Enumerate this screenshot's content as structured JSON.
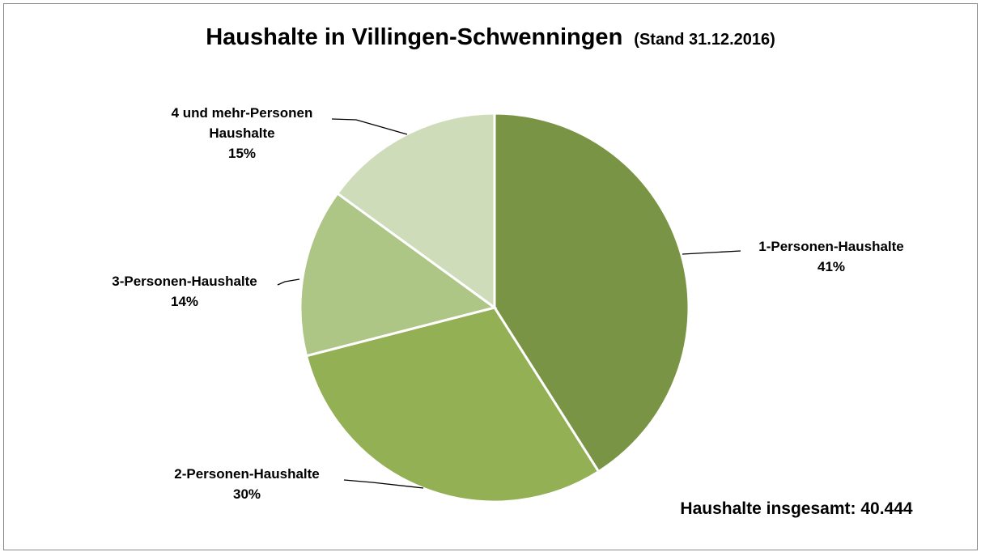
{
  "chart_data": {
    "type": "pie",
    "title": "Haushalte in Villingen-Schwenningen",
    "subtitle": "(Stand 31.12.2016)",
    "annotation": "Haushalte insgesamt: 40.444",
    "categories": [
      "1-Personen-Haushalte",
      "2-Personen-Haushalte",
      "3-Personen-Haushalte",
      "4 und mehr-Personen Haushalte"
    ],
    "values": [
      41,
      30,
      14,
      15
    ],
    "value_labels": [
      "41%",
      "30%",
      "14%",
      "15%"
    ],
    "colors": [
      "#7a9445",
      "#93b055",
      "#adc585",
      "#cfdcb9"
    ]
  }
}
